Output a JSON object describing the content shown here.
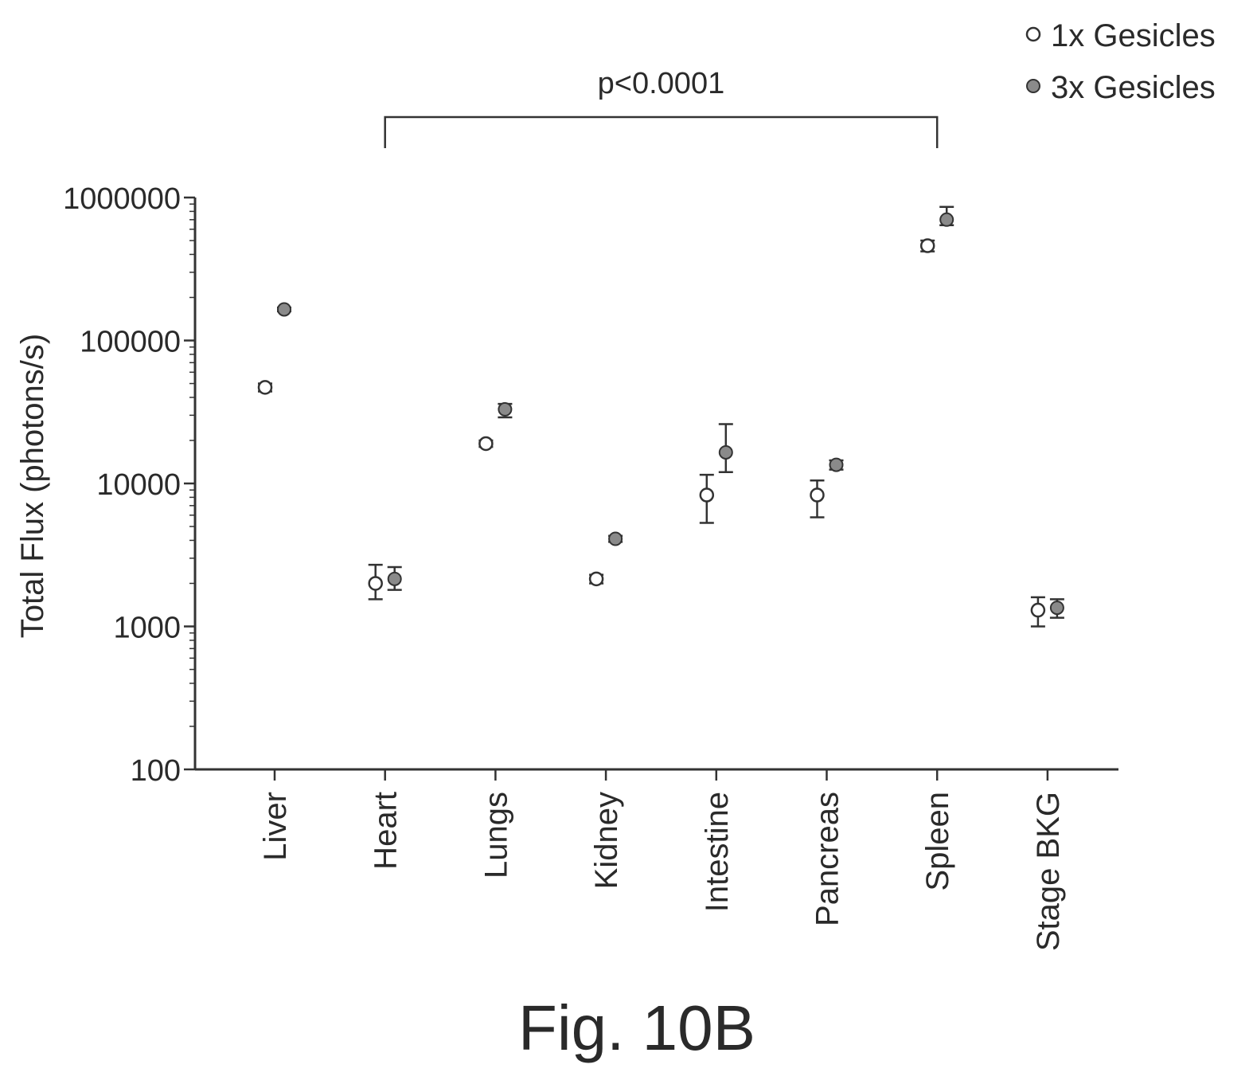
{
  "figure_caption": "Fig. 10B",
  "chart_data": {
    "type": "scatter",
    "ylabel": "Total Flux (photons/s)",
    "xlabel": "",
    "yscale": "log",
    "ylim": [
      100,
      1000000
    ],
    "yticks": [
      100,
      1000,
      10000,
      100000,
      1000000
    ],
    "ytick_labels": [
      "100",
      "1000",
      "10000",
      "100000",
      "1000000"
    ],
    "categories": [
      "Liver",
      "Heart",
      "Lungs",
      "Kidney",
      "Intestine",
      "Pancreas",
      "Spleen",
      "Stage BKG"
    ],
    "legend_position": "top-right",
    "series": [
      {
        "name": "1x Gesicles",
        "marker": "open-circle",
        "values": [
          47000,
          2000,
          19000,
          2150,
          8300,
          8300,
          460000,
          1300
        ],
        "err_low": [
          44000,
          1550,
          18000,
          2000,
          5300,
          5800,
          420000,
          1000
        ],
        "err_high": [
          50000,
          2700,
          20000,
          2300,
          11500,
          10500,
          500000,
          1600
        ]
      },
      {
        "name": "3x Gesicles",
        "marker": "filled-circle",
        "values": [
          165000,
          2150,
          33000,
          4100,
          16500,
          13500,
          700000,
          1350
        ],
        "err_low": [
          160000,
          1800,
          29000,
          3900,
          12000,
          12500,
          640000,
          1150
        ],
        "err_high": [
          170000,
          2600,
          36000,
          4300,
          26000,
          14500,
          860000,
          1550
        ]
      }
    ],
    "annotations": [
      {
        "text": "p<0.0001",
        "from_category": "Heart",
        "to_category": "Spleen"
      }
    ]
  }
}
